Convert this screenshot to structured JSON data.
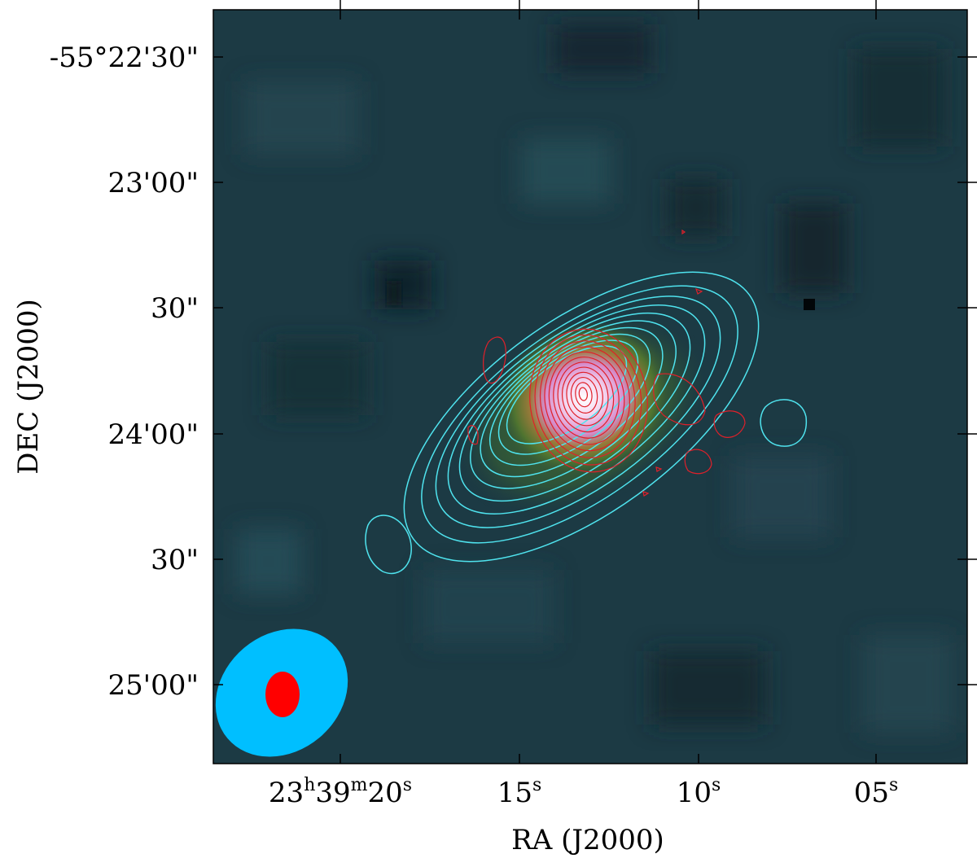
{
  "figure": {
    "x_axis": {
      "title": "RA (J2000)",
      "ticks": [
        {
          "value_sec": 20,
          "label": {
            "main": "23",
            "h": "h",
            "m_val": "39",
            "m": "m",
            "s_val": "20",
            "s": "s"
          }
        },
        {
          "value_sec": 15,
          "label": {
            "main": "15",
            "s": "s"
          }
        },
        {
          "value_sec": 10,
          "label": {
            "main": "10",
            "s": "s"
          }
        },
        {
          "value_sec": 5,
          "label": {
            "main": "05",
            "s": "s"
          }
        }
      ]
    },
    "y_axis": {
      "title": "DEC (J2000)",
      "ticks": [
        {
          "label": "-55°22'30\""
        },
        {
          "label": "23'00\""
        },
        {
          "label": "30\""
        },
        {
          "label": "24'00\""
        },
        {
          "label": "30\""
        },
        {
          "label": "25'00\""
        }
      ]
    },
    "image": {
      "background_color": "#1c3a44",
      "colormap_peak_color": "#ffffff",
      "colormap_mid_color": "#d98fd0",
      "colormap_low_color": "#5e7d2e"
    },
    "contours": {
      "cyan_color": "#4fe3ee",
      "red_color": "#e0202a"
    },
    "beams": {
      "large_beam_color": "#00bfff",
      "small_beam_color": "#ff0000"
    }
  }
}
